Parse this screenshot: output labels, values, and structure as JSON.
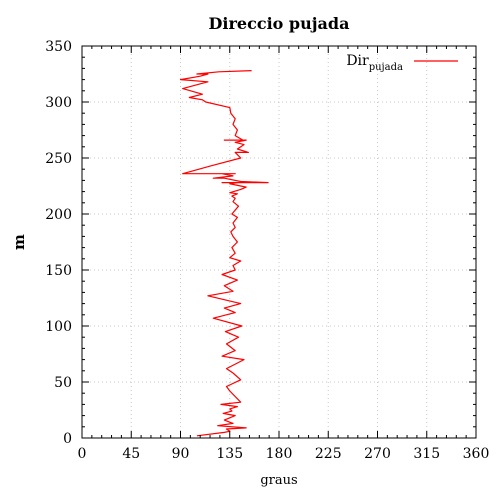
{
  "chart_data": {
    "type": "line",
    "title": "Direccio pujada",
    "xlabel": "graus",
    "ylabel": "m",
    "xlim": [
      0,
      360
    ],
    "ylim": [
      0,
      350
    ],
    "xticks": [
      0,
      45,
      90,
      135,
      180,
      225,
      270,
      315,
      360
    ],
    "yticks": [
      0,
      50,
      100,
      150,
      200,
      250,
      300,
      350
    ],
    "x_minor_step": 9,
    "y_minor_step": 10,
    "grid": true,
    "legend_position": "top-right",
    "colors": {
      "series": "#ff0000",
      "grid": "#c8c8c8",
      "axis": "#000000"
    },
    "series": [
      {
        "name": "Dir",
        "name_subscript": "pujada",
        "x": [
          105,
          130,
          135,
          132,
          150,
          124,
          138,
          130,
          140,
          129,
          137,
          135,
          142,
          127,
          145,
          135,
          132,
          145,
          138,
          132,
          148,
          128,
          140,
          132,
          143,
          131,
          146,
          120,
          140,
          130,
          145,
          115,
          138,
          130,
          142,
          128,
          140,
          138,
          145,
          135,
          140,
          137,
          142,
          138,
          136,
          140,
          138,
          142,
          137,
          143,
          138,
          140,
          137,
          142,
          135,
          145,
          150,
          140,
          135,
          142,
          128,
          130,
          140,
          170,
          145,
          130,
          120,
          138,
          128,
          125,
          135,
          100,
          140,
          92,
          118,
          145,
          140,
          152,
          142,
          148,
          140,
          150,
          130,
          147,
          140,
          142,
          138,
          140,
          136,
          135,
          113,
          110,
          98,
          110,
          92,
          115,
          90,
          108,
          115,
          105,
          125,
          155
        ],
        "y": [
          2,
          5,
          6,
          8,
          9,
          11,
          13,
          16,
          20,
          22,
          24,
          26,
          28,
          30,
          32,
          42,
          46,
          52,
          58,
          62,
          70,
          73,
          78,
          84,
          90,
          95,
          100,
          107,
          112,
          116,
          120,
          127,
          131,
          136,
          141,
          146,
          150,
          154,
          158,
          161,
          165,
          170,
          175,
          180,
          184,
          188,
          192,
          197,
          200,
          207,
          211,
          214,
          216,
          218,
          219,
          222,
          224,
          226,
          227,
          228,
          228,
          228,
          228,
          228,
          229,
          232,
          232,
          234,
          236,
          236,
          236,
          236,
          236,
          236,
          243,
          250,
          255,
          255,
          258,
          262,
          264,
          266,
          266,
          266,
          270,
          275,
          280,
          285,
          290,
          295,
          300,
          302,
          304,
          307,
          312,
          318,
          320,
          323,
          325,
          325,
          327,
          328
        ]
      }
    ]
  }
}
